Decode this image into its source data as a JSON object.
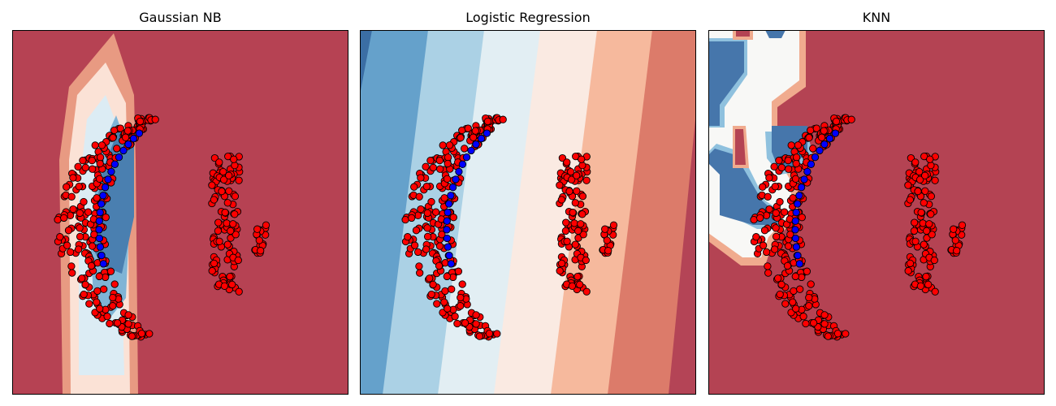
{
  "chart_data": [
    {
      "type": "scatter",
      "title": "Gaussian NB",
      "xlabel": "",
      "ylabel": "",
      "ticks_visible": false,
      "background": "decision-contour",
      "colormap": "RdBu",
      "class_colors": {
        "class_0": "#0000ff",
        "class_1": "#ff0000"
      },
      "point_edge": "#000000"
    },
    {
      "type": "scatter",
      "title": "Logistic Regression",
      "xlabel": "",
      "ylabel": "",
      "ticks_visible": false,
      "background": "decision-contour",
      "colormap": "RdBu",
      "class_colors": {
        "class_0": "#0000ff",
        "class_1": "#ff0000"
      },
      "point_edge": "#000000"
    },
    {
      "type": "scatter",
      "title": "KNN",
      "xlabel": "",
      "ylabel": "",
      "ticks_visible": false,
      "background": "decision-contour",
      "colormap": "RdBu",
      "class_colors": {
        "class_0": "#0000ff",
        "class_1": "#ff0000"
      },
      "point_edge": "#000000"
    }
  ]
}
